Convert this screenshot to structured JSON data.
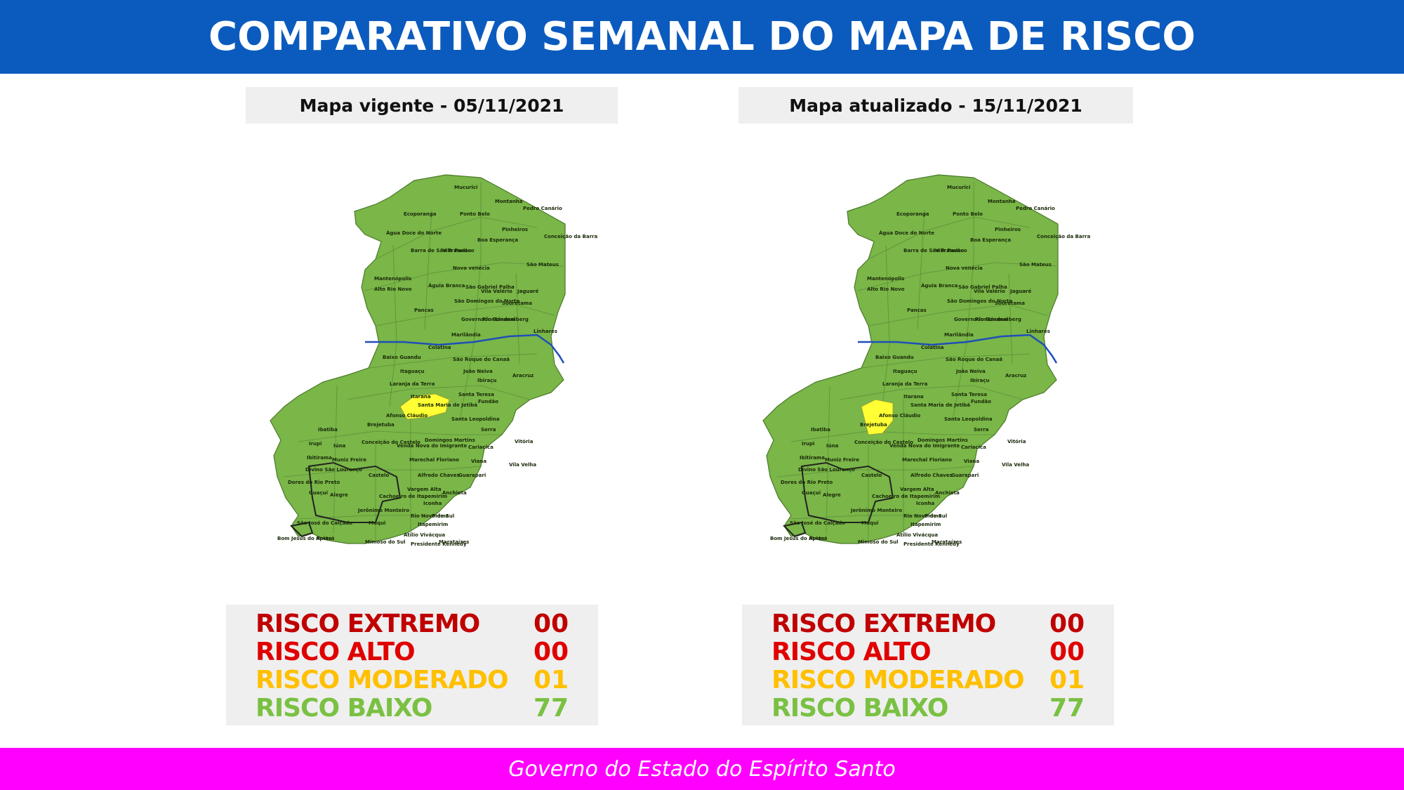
{
  "header": {
    "title": "COMPARATIVO SEMANAL DO MAPA DE RISCO"
  },
  "colors": {
    "header_bg": "#0b5bbf",
    "footer_bg": "#ff00ff",
    "map_low": "#7ab648",
    "map_moderate": "#ffff33",
    "river": "#1f4fb8",
    "extremo": "#c00000",
    "alto": "#e00000",
    "moderado": "#ffc000",
    "baixo": "#7ac143"
  },
  "maps": [
    {
      "title": "Mapa vigente - 05/11/2021",
      "moderate_municipality": "Santa Maria de Jetibá",
      "legend": [
        {
          "label": "RISCO EXTREMO",
          "value": "00",
          "color": "#c00000"
        },
        {
          "label": "RISCO ALTO",
          "value": "00",
          "color": "#e00000"
        },
        {
          "label": "RISCO MODERADO",
          "value": "01",
          "color": "#ffc000"
        },
        {
          "label": "RISCO BAIXO",
          "value": "77",
          "color": "#7ac143"
        }
      ]
    },
    {
      "title": "Mapa atualizado - 15/11/2021",
      "moderate_municipality": "Afonso Cláudio",
      "legend": [
        {
          "label": "RISCO EXTREMO",
          "value": "00",
          "color": "#c00000"
        },
        {
          "label": "RISCO ALTO",
          "value": "00",
          "color": "#e00000"
        },
        {
          "label": "RISCO MODERADO",
          "value": "01",
          "color": "#ffc000"
        },
        {
          "label": "RISCO BAIXO",
          "value": "77",
          "color": "#7ac143"
        }
      ]
    }
  ],
  "municipalities": [
    "Mucurici",
    "Montanha",
    "Pedro Canário",
    "Ecoporanga",
    "Ponto Belo",
    "Pinheiros",
    "Conceição da Barra",
    "Água Doce do Norte",
    "Boa Esperança",
    "Barra de São Francisco",
    "Vila Pavão",
    "São Mateus",
    "Nova venécia",
    "Mantenópolis",
    "Águia Branca",
    "São Gabriel Palha",
    "Vila Valério",
    "Jaguaré",
    "Alto Rio Novo",
    "Sooretama",
    "São Domingos do Norte",
    "Pancas",
    "Governador Lindemberg",
    "Rio Bananal",
    "Linhares",
    "Marilândia",
    "Colatina",
    "Baixo Guandu",
    "São Roque do Canaã",
    "João Neiva",
    "Aracruz",
    "Itaguaçu",
    "Ibiraçu",
    "Laranja da Terra",
    "Santa Teresa",
    "Itarana",
    "Fundão",
    "Santa Maria de Jetibá",
    "Afonso Cláudio",
    "Santa Leopoldina",
    "Serra",
    "Brejetuba",
    "Vitória",
    "Ibatiba",
    "Domingos Martins",
    "Irupi",
    "Iúna",
    "Conceição do Castelo",
    "Venda Nova do Imigrante",
    "Cariacica",
    "Ibitirama",
    "Muniz Freire",
    "Marechal Floriano",
    "Viana",
    "Vila Velha",
    "Divino São Lourenço",
    "Castelo",
    "Alfredo Chaves",
    "Guarapari",
    "Dores do Rio Preto",
    "Guaçuí",
    "Alegre",
    "Cachoeiro de Itapemirim",
    "Vargem Alta",
    "Anchieta",
    "Jerônimo Monteiro",
    "Iconha",
    "Rio Novo do Sul",
    "Piúma",
    "Muqui",
    "São José do Calçado",
    "Itapemirim",
    "Atílio Vivácqua",
    "Bom Jesus do Norte",
    "Apiacá",
    "Mimoso do Sul",
    "Presidente Kennedy",
    "Marataízes"
  ],
  "footer": {
    "text": "Governo do Estado do Espírito Santo"
  }
}
